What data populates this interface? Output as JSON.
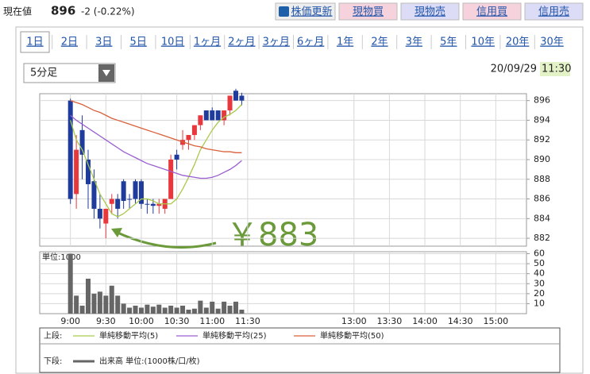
{
  "header": {
    "label": "現在値",
    "price": 896,
    "change": "-2 (-0.22%)",
    "buttons": [
      "株価更新",
      "現物買",
      "現物売",
      "信用買",
      "信用売"
    ],
    "tabs": [
      "1日",
      "2日",
      "3日",
      "5日",
      "10日",
      "1ヶ月",
      "2ヶ月",
      "3ヶ月",
      "6ヶ月",
      "1年",
      "2年",
      "3年",
      "5年",
      "10年",
      "20年",
      "30年"
    ],
    "interval": "5分足",
    "date": "20/09/29",
    "time": "11:30"
  },
  "legend": {
    "upper": "上段:",
    "lower": "下段:"
  },
  "chart_data": [
    {
      "type": "candlestick",
      "annotation": "￥883",
      "x": [
        540,
        545,
        550,
        555,
        560,
        565,
        570,
        575,
        580,
        585,
        590,
        595,
        600,
        605,
        610,
        615,
        620,
        625,
        630,
        635,
        640,
        645,
        650,
        655,
        660,
        665,
        670,
        675,
        680,
        685
      ],
      "open": [
        896,
        886.5,
        893,
        890,
        887.8,
        885,
        883.5,
        885.5,
        886,
        887.8,
        886,
        887.8,
        887.8,
        885.5,
        885.5,
        885.3,
        885,
        886,
        890.5,
        891.5,
        892,
        892.5,
        893.5,
        895,
        895,
        895,
        894,
        895,
        897,
        896.5
      ],
      "high": [
        896.2,
        892.5,
        894.5,
        891,
        889,
        886.5,
        885,
        886.5,
        886.5,
        888,
        886.5,
        888,
        888,
        886,
        886,
        886,
        886,
        890.5,
        891,
        893,
        892.5,
        893.5,
        894.5,
        895,
        895.3,
        895,
        895,
        896.5,
        897.2,
        896.8
      ],
      "low": [
        885.5,
        885,
        888,
        885,
        884,
        883,
        882,
        884.5,
        884,
        885,
        885,
        885.5,
        885,
        884.5,
        884.5,
        884.5,
        884.5,
        886,
        889,
        891,
        891,
        892,
        893,
        894,
        894,
        894,
        893.5,
        894.5,
        896,
        895.5
      ],
      "close": [
        886,
        891,
        890.5,
        887.5,
        885,
        884,
        885,
        886,
        885,
        885.8,
        886,
        886,
        885.5,
        885.5,
        885.3,
        885.5,
        886,
        890,
        890,
        892,
        892.5,
        893.5,
        894.5,
        894,
        894,
        894,
        895,
        896.5,
        896,
        896
      ],
      "up_color": "#e8383d",
      "down_color": "#1f3c9c",
      "series": [
        {
          "name": "単純移動平均(5)",
          "color": "#a9c94a",
          "values": [
            894,
            892,
            891,
            889.5,
            888,
            886.5,
            885.5,
            884.5,
            884.2,
            884.5,
            885,
            885.5,
            886,
            886,
            885.8,
            885.5,
            885.5,
            885.5,
            886,
            887,
            888.2,
            889.5,
            891,
            892,
            893,
            893.8,
            894.3,
            894.6,
            895,
            895.6
          ]
        },
        {
          "name": "単純移動平均(25)",
          "color": "#9a5fd0",
          "values": [
            894.5,
            894,
            893.6,
            893.2,
            892.8,
            892.4,
            892,
            891.6,
            891.2,
            890.8,
            890.5,
            890.2,
            889.9,
            889.6,
            889.4,
            889.2,
            889,
            888.8,
            888.6,
            888.4,
            888.3,
            888.2,
            888.1,
            888.1,
            888.2,
            888.4,
            888.7,
            889,
            889.4,
            889.9
          ]
        },
        {
          "name": "単純移動平均(50)",
          "color": "#d9603a",
          "values": [
            896,
            895.8,
            895.6,
            895.3,
            895,
            894.8,
            894.5,
            894.2,
            894,
            893.8,
            893.6,
            893.4,
            893.2,
            893,
            892.8,
            892.6,
            892.4,
            892.2,
            892,
            891.8,
            891.6,
            891.4,
            891.3,
            891.1,
            891,
            890.9,
            890.8,
            890.8,
            890.7,
            890.7
          ]
        }
      ],
      "xlim": [
        514,
        926
      ],
      "ylim": [
        881.2,
        896.7
      ],
      "yticks": [
        882,
        884,
        886,
        888,
        890,
        892,
        894,
        896
      ],
      "grid": true
    },
    {
      "type": "bar",
      "y_label": "単位:1000",
      "x": [
        540,
        545,
        550,
        555,
        560,
        565,
        570,
        575,
        580,
        585,
        590,
        595,
        600,
        605,
        610,
        615,
        620,
        625,
        630,
        635,
        640,
        645,
        650,
        655,
        660,
        665,
        670,
        675,
        680,
        685
      ],
      "series": [
        {
          "name": "出来高 単位:(1000株/口/枚)",
          "color": "#666666",
          "values": [
            60,
            18,
            8,
            35,
            20,
            22,
            18,
            28,
            18,
            10,
            6,
            8,
            6,
            9,
            7,
            9,
            6,
            8,
            6,
            8,
            4,
            5,
            13,
            6,
            12,
            5,
            12,
            8,
            12,
            4
          ]
        }
      ],
      "xlim": [
        514,
        926
      ],
      "ylim": [
        0,
        62
      ],
      "yticks": [
        10,
        20,
        30,
        40,
        50,
        60
      ],
      "xticks": [
        {
          "value": 540,
          "label": "9:00"
        },
        {
          "value": 570,
          "label": "9:30"
        },
        {
          "value": 600,
          "label": "10:00"
        },
        {
          "value": 630,
          "label": "10:30"
        },
        {
          "value": 660,
          "label": "11:00"
        },
        {
          "value": 690,
          "label": "11:30"
        },
        {
          "value": 780,
          "label": "13:00"
        },
        {
          "value": 810,
          "label": "13:30"
        },
        {
          "value": 840,
          "label": "14:00"
        },
        {
          "value": 870,
          "label": "14:30"
        },
        {
          "value": 900,
          "label": "15:00"
        }
      ],
      "grid": true
    }
  ]
}
